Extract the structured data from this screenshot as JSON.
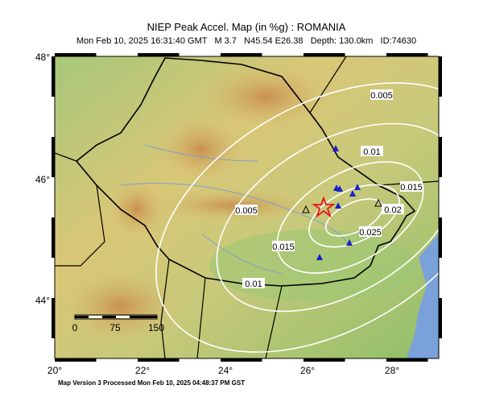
{
  "header": {
    "title": "NIEP Peak Accel. Map (in %g) : ROMANIA",
    "subtitle": "Mon Feb 10, 2025 16:31:40 GMT   M 3.7   N45.54 E26.38   Depth: 130.0km   ID:74630"
  },
  "map": {
    "lat_labels": [
      "48°",
      "46°",
      "44°"
    ],
    "lon_labels": [
      "20°",
      "22°",
      "24°",
      "26°",
      "28°"
    ],
    "contour_labels": [
      "0.005",
      "0.005",
      "0.01",
      "0.01",
      "0.015",
      "0.015",
      "0.02",
      "0.025"
    ],
    "scale_labels": [
      "0",
      "75",
      "150"
    ]
  },
  "footer": {
    "text": "Map Version 3 Processed Mon Feb 10, 2025 04:48:37 PM GST"
  }
}
